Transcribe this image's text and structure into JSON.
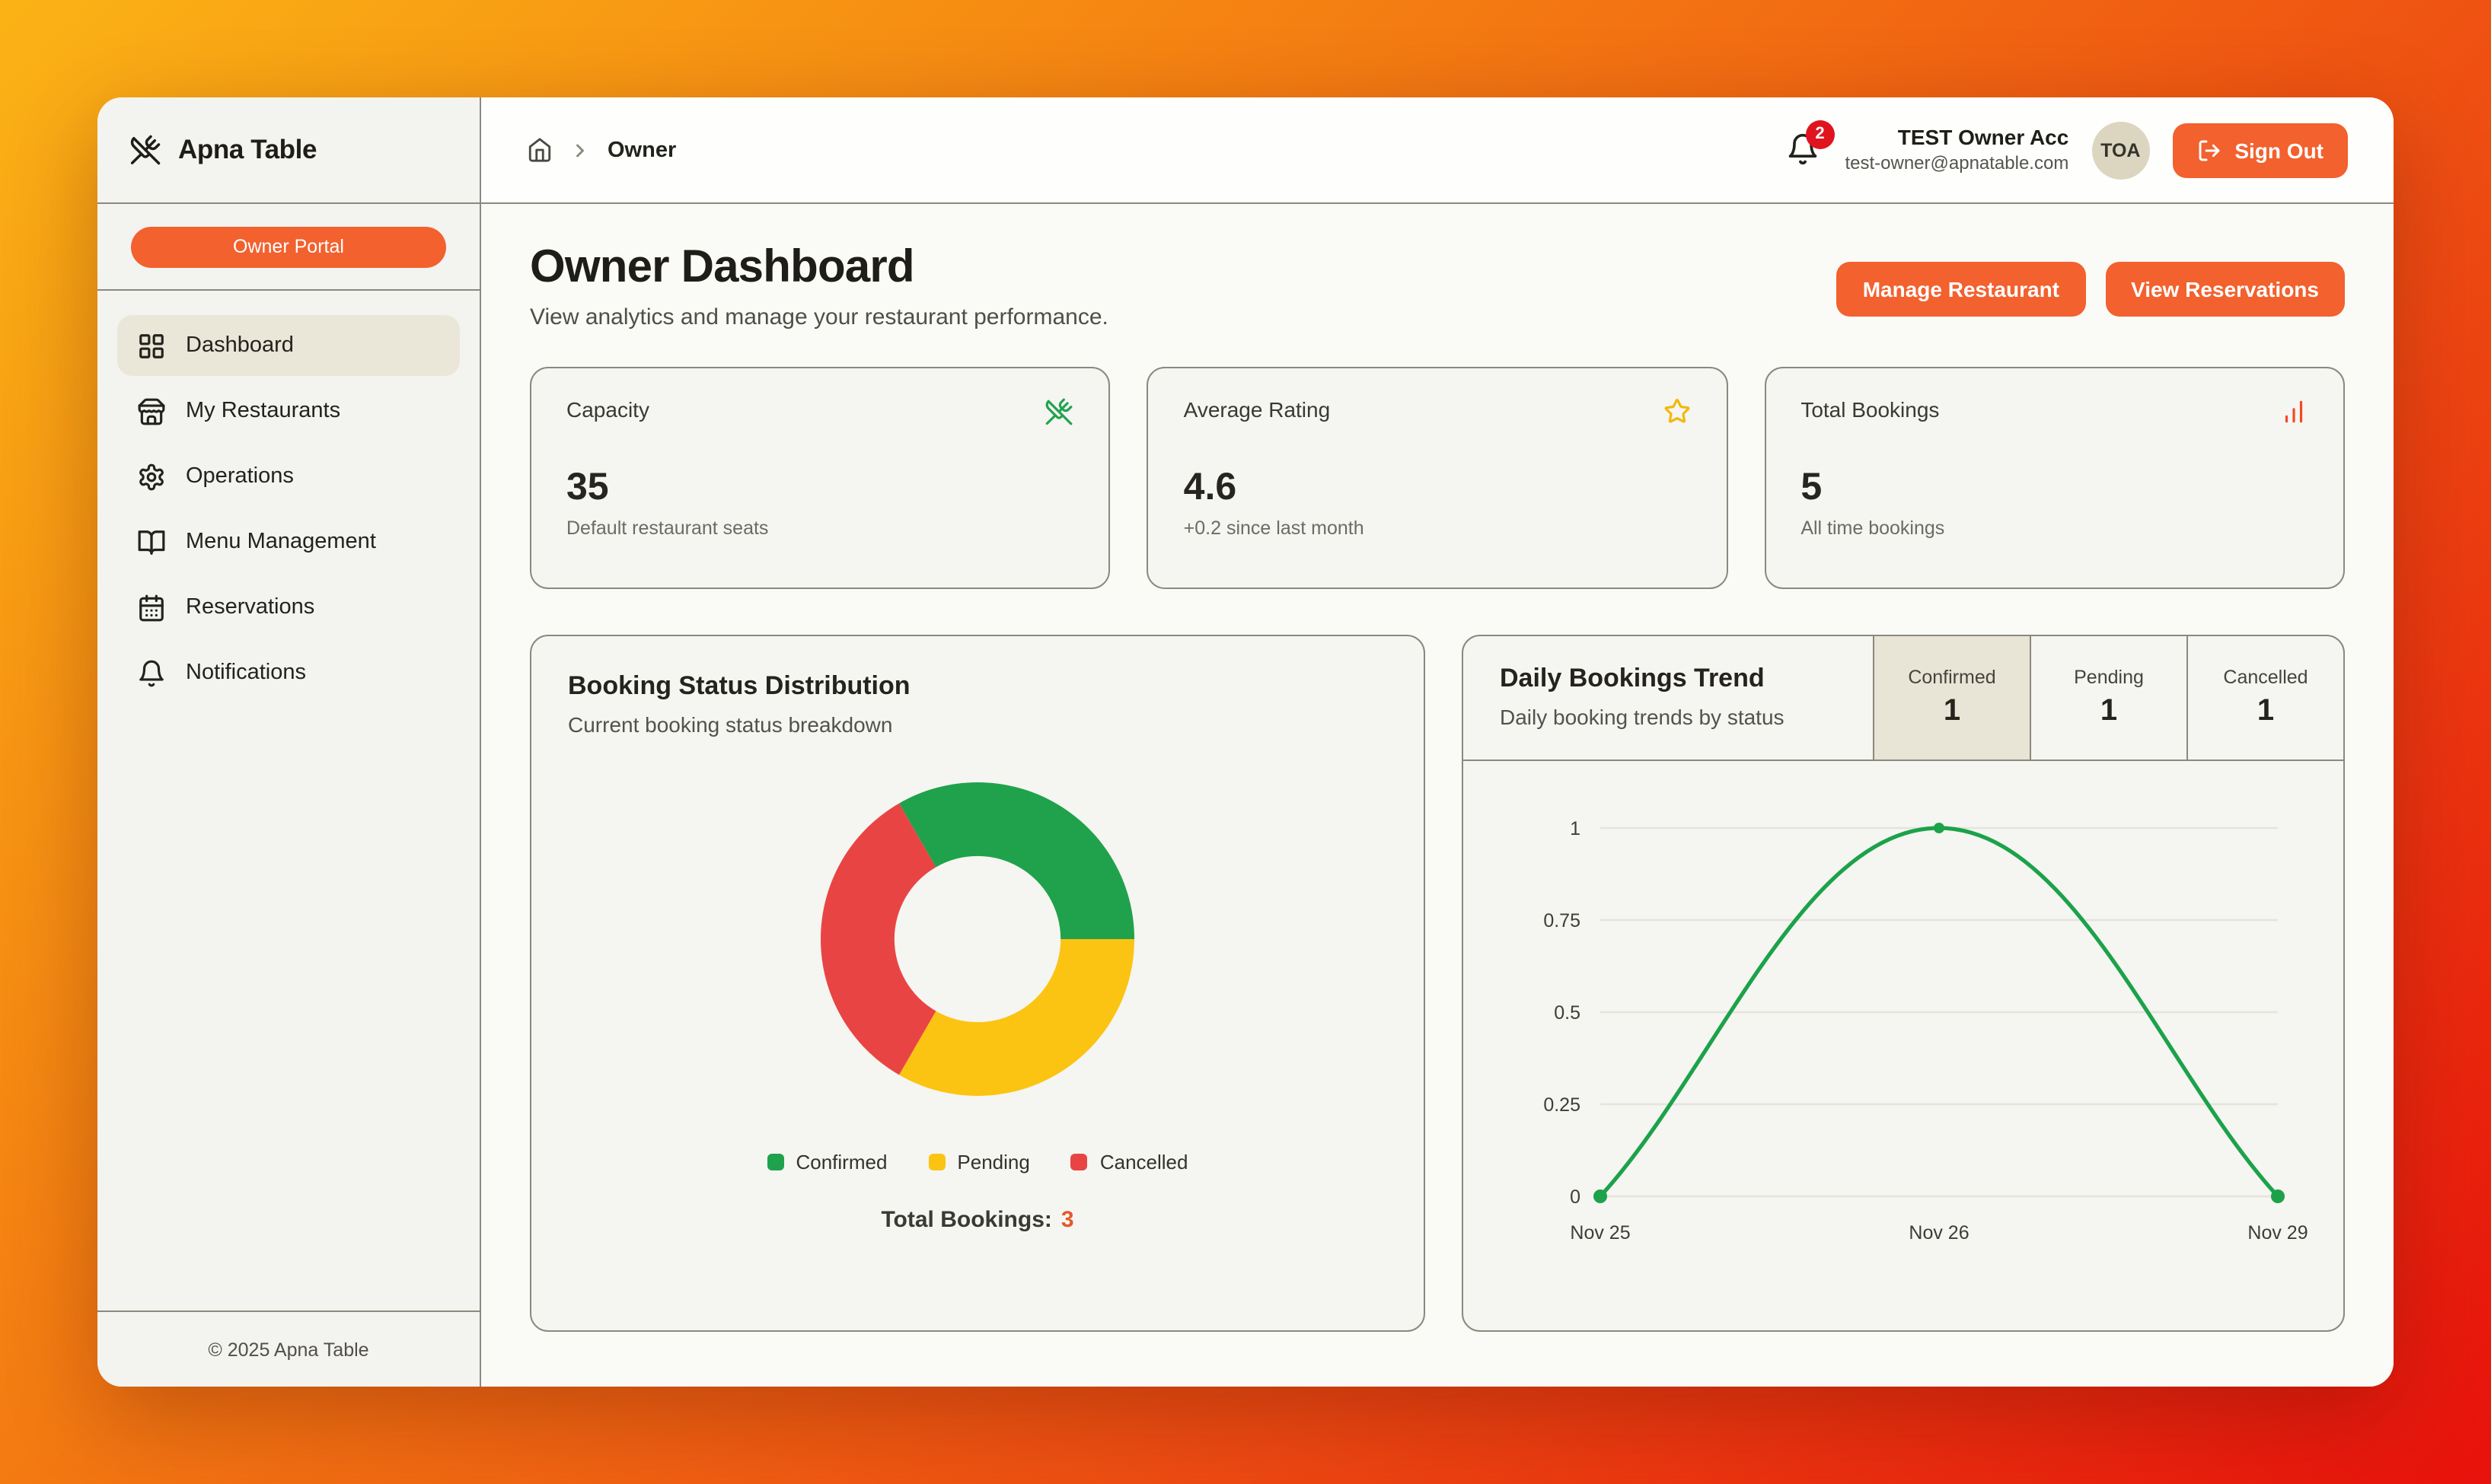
{
  "app": {
    "brand": "Apna Table",
    "portal_badge": "Owner Portal",
    "footer_copyright": "© 2025 Apna Table"
  },
  "header": {
    "breadcrumb_current": "Owner",
    "notification_badge": "2",
    "user": {
      "name": "TEST Owner Acc",
      "email": "test-owner@apnatable.com",
      "initials": "TOA"
    },
    "sign_out_label": "Sign Out"
  },
  "sidebar": {
    "items": [
      {
        "label": "Dashboard",
        "icon": "dashboard-grid-icon",
        "active": true
      },
      {
        "label": "My Restaurants",
        "icon": "storefront-icon",
        "active": false
      },
      {
        "label": "Operations",
        "icon": "gear-icon",
        "active": false
      },
      {
        "label": "Menu Management",
        "icon": "book-open-icon",
        "active": false
      },
      {
        "label": "Reservations",
        "icon": "calendar-icon",
        "active": false
      },
      {
        "label": "Notifications",
        "icon": "bell-icon",
        "active": false
      }
    ]
  },
  "page": {
    "title": "Owner Dashboard",
    "subtitle": "View analytics and manage your restaurant performance.",
    "actions": [
      {
        "label": "Manage Restaurant"
      },
      {
        "label": "View Reservations"
      }
    ]
  },
  "stats": [
    {
      "title": "Capacity",
      "value": "35",
      "caption": "Default restaurant seats",
      "icon": "utensils-crossed-icon",
      "icon_color": "#21A350"
    },
    {
      "title": "Average Rating",
      "value": "4.6",
      "caption": "+0.2 since last month",
      "icon": "star-icon",
      "icon_color": "#F0B90B"
    },
    {
      "title": "Total Bookings",
      "value": "5",
      "caption": "All time bookings",
      "icon": "bar-chart-icon",
      "icon_color": "#F04A23"
    }
  ],
  "colors": {
    "accent_orange": "#F2612E",
    "badge_red": "#E0141F",
    "confirmed_green": "#1FA24B",
    "pending_yellow": "#FBC412",
    "cancelled_red": "#E94444"
  },
  "chart_data": [
    {
      "type": "pie",
      "variant": "donut",
      "title": "Booking Status Distribution",
      "subtitle": "Current booking status breakdown",
      "labels": [
        "Confirmed",
        "Pending",
        "Cancelled"
      ],
      "values": [
        1,
        1,
        1
      ],
      "colors": [
        "#1FA24B",
        "#FBC412",
        "#E94444"
      ],
      "rotation_deg": -30,
      "inner_radius_ratio": 0.53,
      "legend_position": "bottom",
      "total_label": "Total Bookings:",
      "total_value": "3"
    },
    {
      "type": "line",
      "title": "Daily Bookings Trend",
      "subtitle": "Daily booking trends by status",
      "tabs": [
        {
          "label": "Confirmed",
          "value": "1",
          "active": true
        },
        {
          "label": "Pending",
          "value": "1",
          "active": false
        },
        {
          "label": "Cancelled",
          "value": "1",
          "active": false
        }
      ],
      "x": [
        "Nov 25",
        "Nov 26",
        "Nov 29"
      ],
      "series": [
        {
          "name": "Confirmed",
          "values": [
            0,
            1,
            0
          ],
          "color": "#1CA24A"
        }
      ],
      "yticks": [
        0,
        0.25,
        0.5,
        0.75,
        1
      ],
      "ylim": [
        0,
        1.05
      ],
      "grid": true,
      "legend_position": "none"
    }
  ]
}
